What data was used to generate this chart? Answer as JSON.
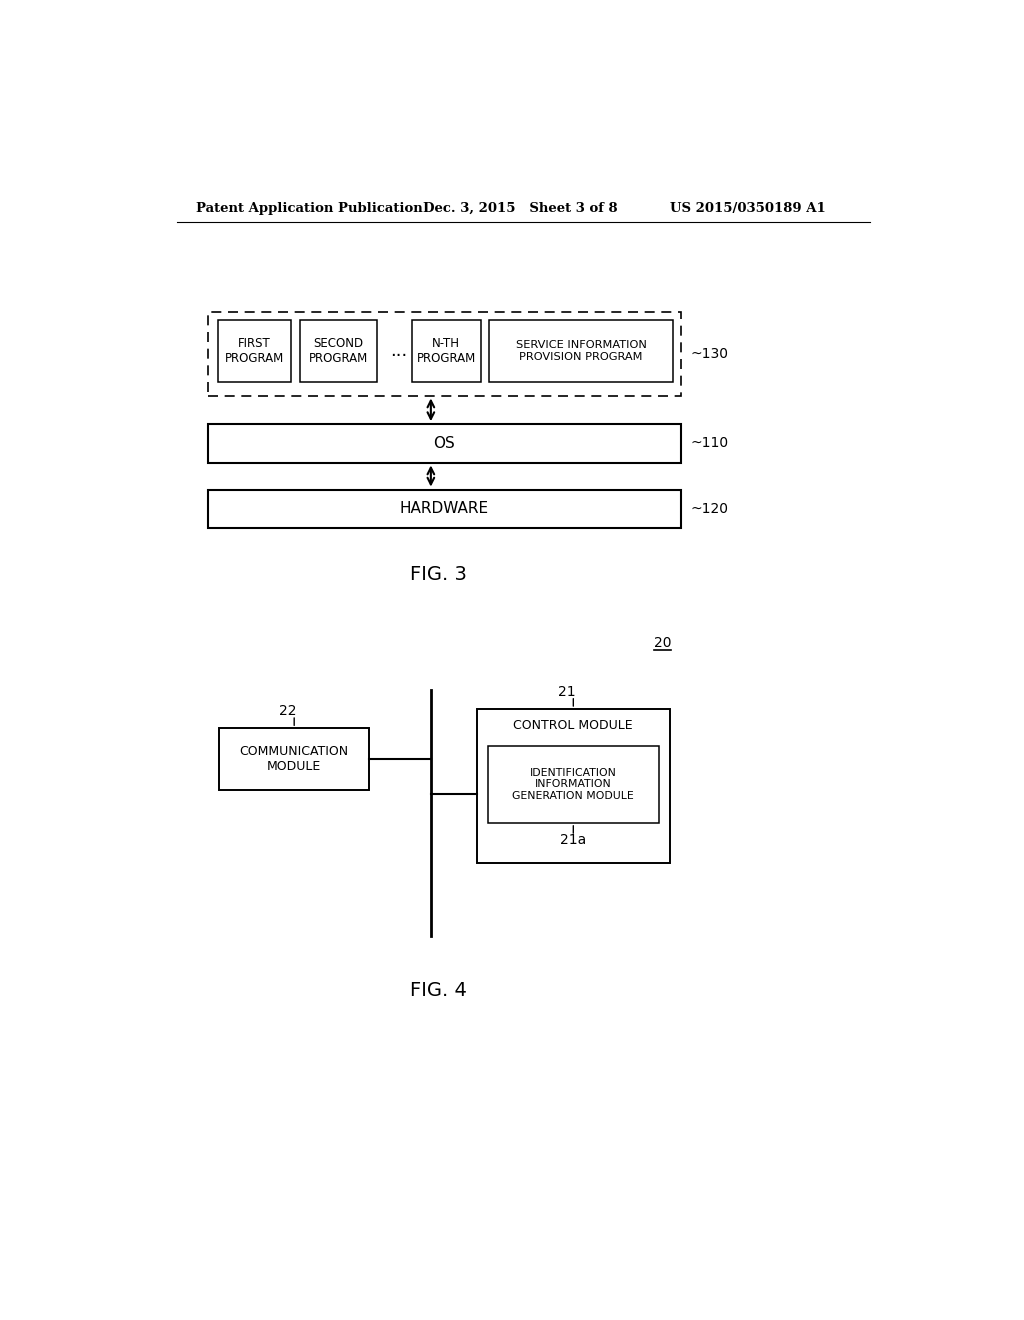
{
  "bg_color": "#ffffff",
  "header_left": "Patent Application Publication",
  "header_mid": "Dec. 3, 2015   Sheet 3 of 8",
  "header_right": "US 2015/0350189 A1"
}
